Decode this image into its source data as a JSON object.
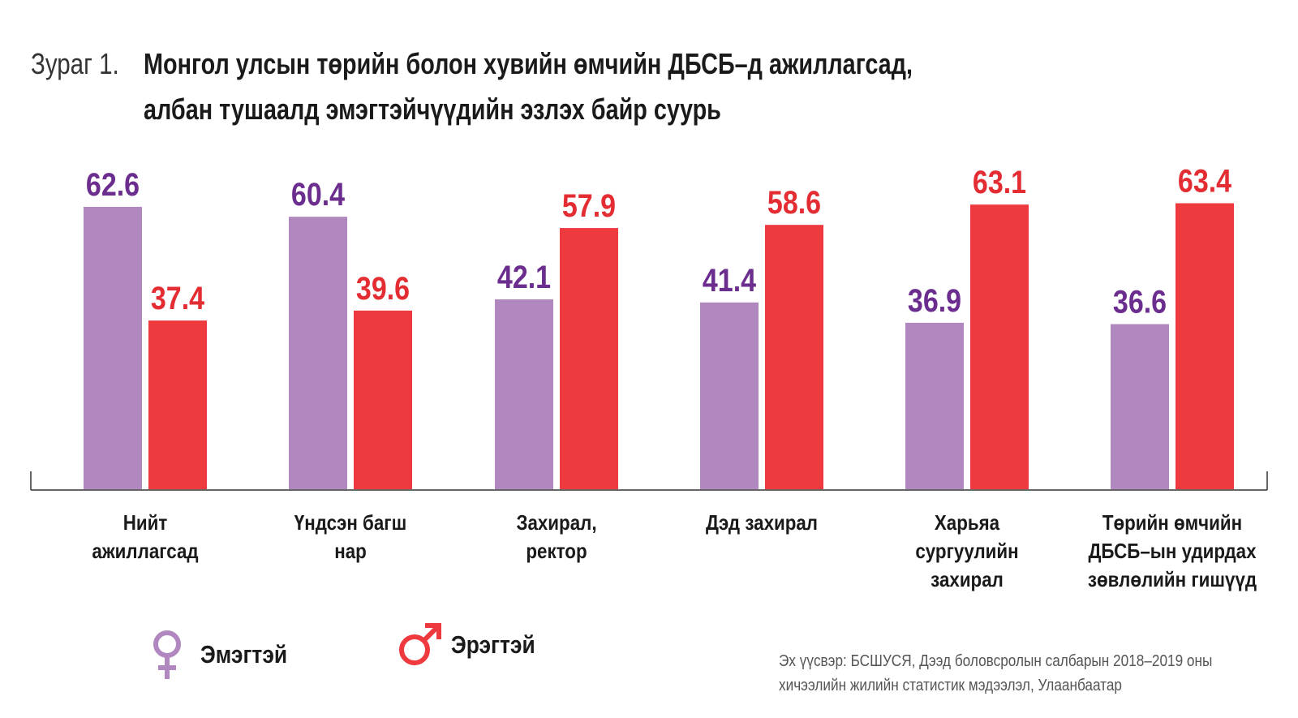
{
  "header": {
    "prefix": "Зураг 1.",
    "title_line1": "Монгол улсын төрийн болон хувийн өмчийн ДБСБ–д ажиллагсад,",
    "title_line2": "албан тушаалд эмэгтэйчүүдийн эзлэх байр суурь"
  },
  "chart_data": {
    "type": "bar",
    "title": "Монгол улсын төрийн болон хувийн өмчийн ДБСБ–д ажиллагсад, албан тушаалд эмэгтэйчүүдийн эзлэх байр суурь",
    "categories": [
      [
        "Нийт",
        "ажиллагсад"
      ],
      [
        "Үндсэн багш",
        "нар"
      ],
      [
        "Захирал,",
        "ректор"
      ],
      [
        "Дэд захирал"
      ],
      [
        "Харьяа",
        "сургуулийн",
        "захирал"
      ],
      [
        "Төрийн өмчийн",
        "ДБСБ–ын удирдах",
        "зөвлөлийн гишүүд"
      ]
    ],
    "series": [
      {
        "name": "Эмэгтэй",
        "color": "#b088bf",
        "label_color": "#6b2d8e",
        "values": [
          62.6,
          60.4,
          42.1,
          41.4,
          36.9,
          36.6
        ]
      },
      {
        "name": "Эрэгтэй",
        "color": "#ee3a3f",
        "label_color": "#e32d33",
        "values": [
          37.4,
          39.6,
          57.9,
          58.6,
          63.1,
          63.4
        ]
      }
    ],
    "ylim": [
      0,
      70
    ],
    "grid": false,
    "legend_position": "bottom-left"
  },
  "legend": {
    "female_icon": "venus-icon",
    "male_icon": "mars-icon",
    "female_color": "#b088bf",
    "male_color": "#ee3a3f"
  },
  "source": {
    "line1": "Эх үүсвэр: БСШУСЯ, Дээд боловсролын салбарын 2018–2019 оны",
    "line2": "хичээлийн жилийн статистик мэдээлэл, Улаанбаатар"
  }
}
